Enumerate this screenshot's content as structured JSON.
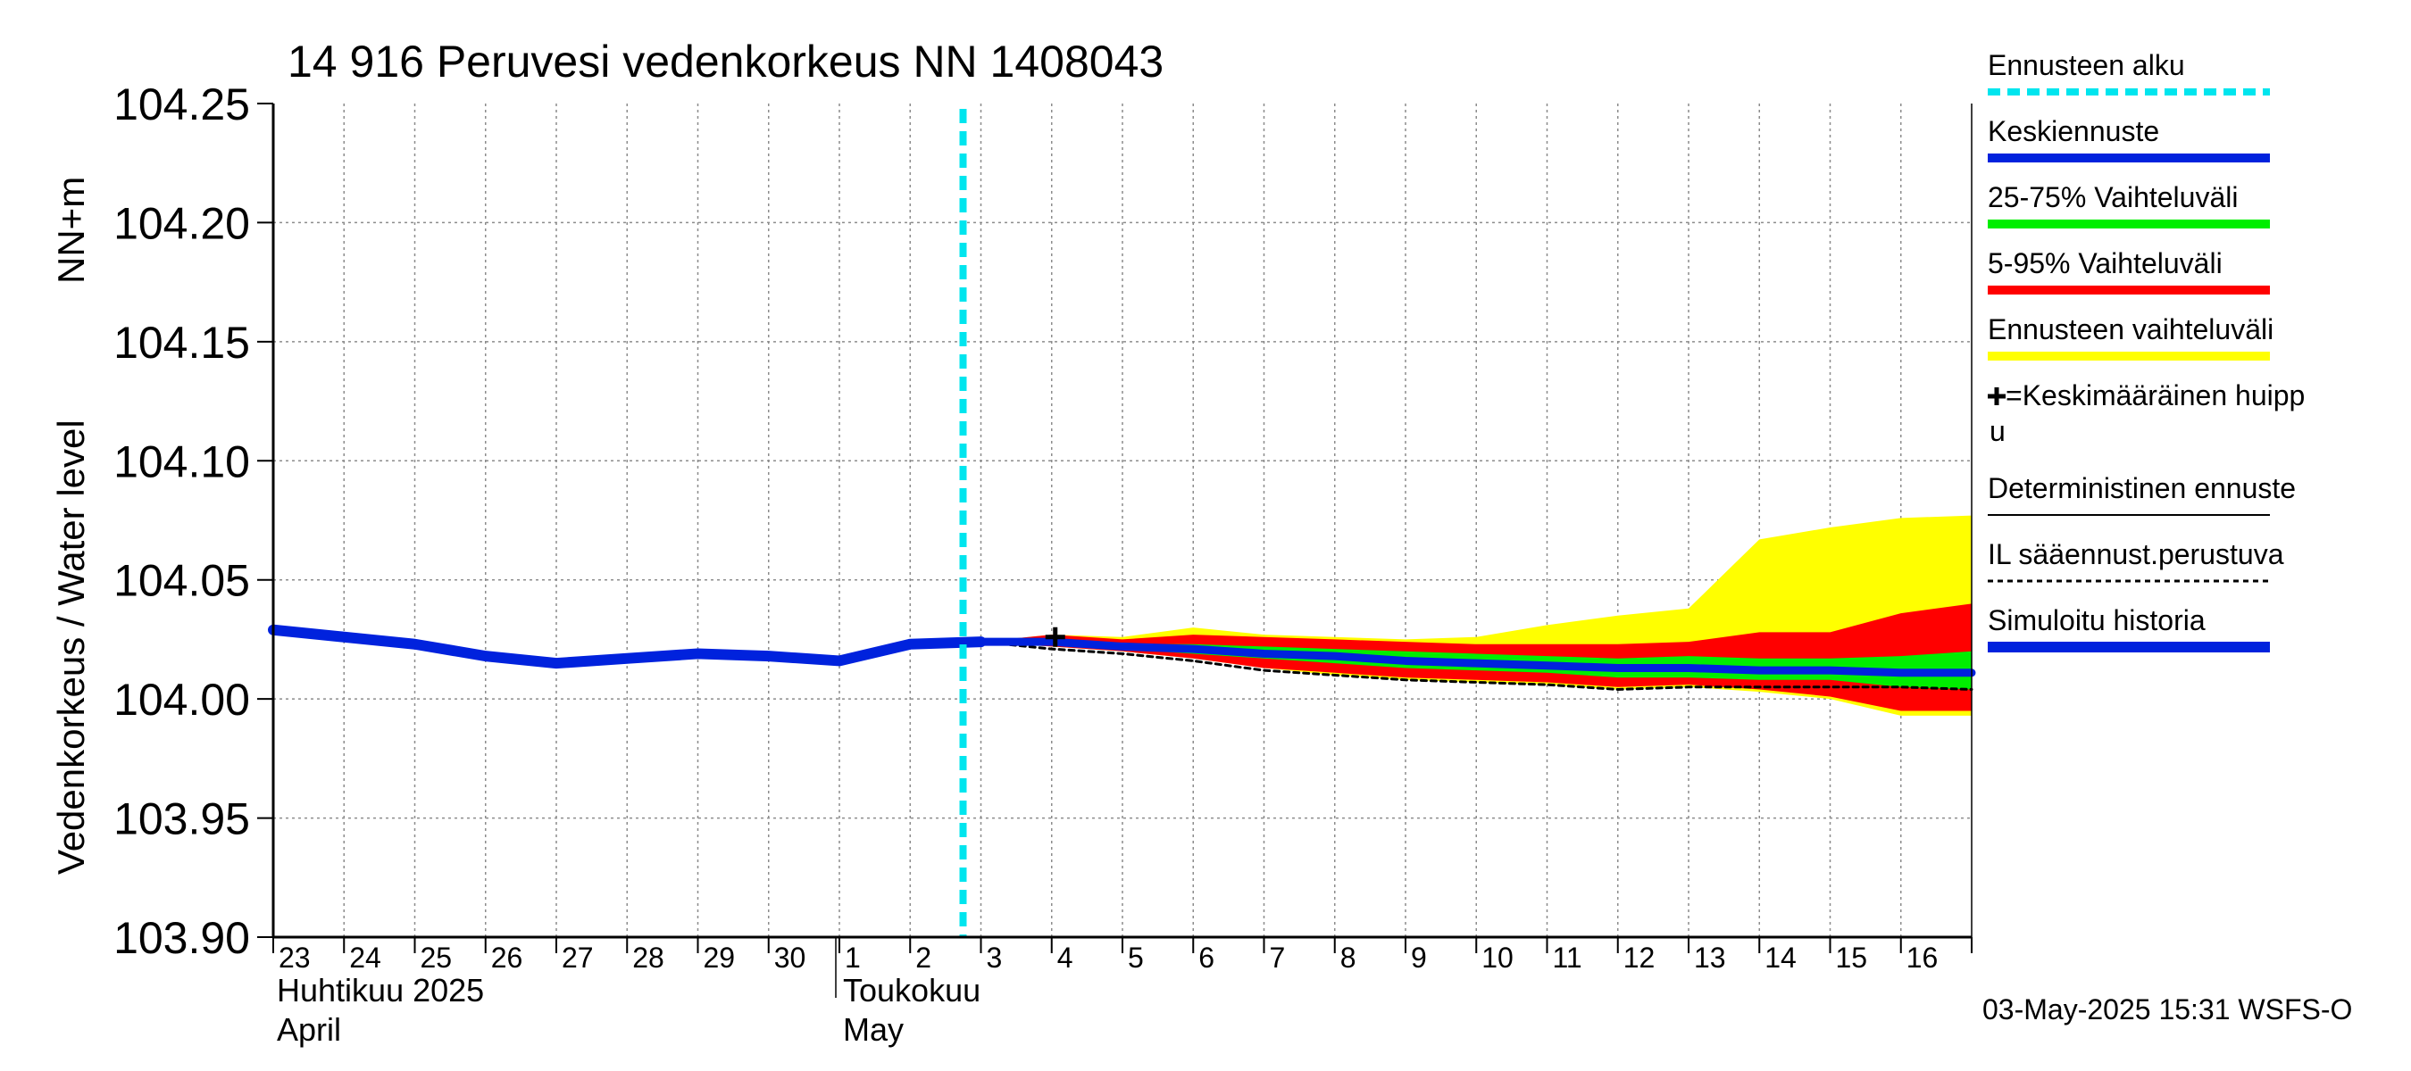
{
  "chart_data": {
    "type": "area",
    "title": "14 916 Peruvesi vedenkorkeus NN 1408043",
    "ylabel_left": "Vedenkorkeus / Water level",
    "ylabel_right": "NN+m",
    "ylim": [
      103.9,
      104.25
    ],
    "yticks": [
      "104.25",
      "104.20",
      "104.15",
      "104.10",
      "104.05",
      "104.00",
      "103.95",
      "103.90"
    ],
    "ytick_values": [
      104.25,
      104.2,
      104.15,
      104.1,
      104.05,
      104.0,
      103.95,
      103.9
    ],
    "x_start": "2025-04-23",
    "x_end": "2025-05-17",
    "x_tick_labels": [
      "23",
      "24",
      "25",
      "26",
      "27",
      "28",
      "29",
      "30",
      "1",
      "2",
      "3",
      "4",
      "5",
      "6",
      "7",
      "8",
      "9",
      "10",
      "11",
      "12",
      "13",
      "14",
      "15",
      "16"
    ],
    "month_labels": [
      {
        "fi": "Huhtikuu  2025",
        "en": "April",
        "date": "2025-04-23"
      },
      {
        "fi": "Toukokuu",
        "en": "May",
        "date": "2025-05-01"
      }
    ],
    "forecast_start": "2025-05-03",
    "timestamp": "03-May-2025 15:31 WSFS-O",
    "grid": true,
    "legend_position": "right",
    "legend": [
      {
        "label": "Ennusteen alku",
        "color": "#00e5ee",
        "style": "dashed"
      },
      {
        "label": "Keskiennuste",
        "color": "#0022dd",
        "style": "solid"
      },
      {
        "label": "25-75% Vaihteluväli",
        "color": "#00ee00",
        "style": "solid"
      },
      {
        "label": "5-95% Vaihteluväli",
        "color": "#ff0000",
        "style": "solid"
      },
      {
        "label": "Ennusteen vaihteluväli",
        "color": "#ffff00",
        "style": "solid"
      },
      {
        "label": "✚=Keskimääräinen huippu",
        "color": "#000000",
        "style": "marker"
      },
      {
        "label": "Deterministinen ennuste",
        "color": "#000000",
        "style": "thin"
      },
      {
        "label": "IL sääennust.perustuva",
        "color": "#000000",
        "style": "dotted"
      },
      {
        "label": "Simuloitu historia",
        "color": "#0022dd",
        "style": "thick"
      }
    ],
    "series": [
      {
        "name": "Simuloitu historia",
        "x": [
          "2025-04-23",
          "2025-04-24",
          "2025-04-25",
          "2025-04-26",
          "2025-04-27",
          "2025-04-28",
          "2025-04-29",
          "2025-04-30",
          "2025-05-01",
          "2025-05-02",
          "2025-05-03"
        ],
        "values": [
          104.029,
          104.026,
          104.023,
          104.018,
          104.015,
          104.017,
          104.019,
          104.018,
          104.016,
          104.023,
          104.024
        ]
      },
      {
        "name": "Keskiennuste",
        "x": [
          "2025-05-03",
          "2025-05-04",
          "2025-05-05",
          "2025-05-06",
          "2025-05-07",
          "2025-05-08",
          "2025-05-09",
          "2025-05-10",
          "2025-05-11",
          "2025-05-12",
          "2025-05-13",
          "2025-05-14",
          "2025-05-15",
          "2025-05-16",
          "2025-05-17"
        ],
        "values": [
          104.024,
          104.024,
          104.022,
          104.021,
          104.019,
          104.018,
          104.016,
          104.015,
          104.014,
          104.013,
          104.013,
          104.012,
          104.012,
          104.011,
          104.011
        ]
      },
      {
        "name": "Ennusteen vaihteluväli",
        "x": [
          "2025-05-03",
          "2025-05-04",
          "2025-05-05",
          "2025-05-06",
          "2025-05-07",
          "2025-05-08",
          "2025-05-09",
          "2025-05-10",
          "2025-05-11",
          "2025-05-12",
          "2025-05-13",
          "2025-05-14",
          "2025-05-15",
          "2025-05-16",
          "2025-05-17"
        ],
        "upper": [
          104.024,
          104.027,
          104.026,
          104.03,
          104.027,
          104.026,
          104.025,
          104.026,
          104.031,
          104.035,
          104.038,
          104.067,
          104.072,
          104.076,
          104.077
        ],
        "lower": [
          104.024,
          104.022,
          104.02,
          104.017,
          104.013,
          104.01,
          104.008,
          104.007,
          104.006,
          104.004,
          104.005,
          104.003,
          104.0,
          103.993,
          103.993
        ]
      },
      {
        "name": "5-95% Vaihteluväli",
        "x": [
          "2025-05-03",
          "2025-05-04",
          "2025-05-05",
          "2025-05-06",
          "2025-05-07",
          "2025-05-08",
          "2025-05-09",
          "2025-05-10",
          "2025-05-11",
          "2025-05-12",
          "2025-05-13",
          "2025-05-14",
          "2025-05-15",
          "2025-05-16",
          "2025-05-17"
        ],
        "upper": [
          104.024,
          104.027,
          104.025,
          104.027,
          104.026,
          104.025,
          104.024,
          104.023,
          104.023,
          104.023,
          104.024,
          104.028,
          104.028,
          104.036,
          104.04
        ],
        "lower": [
          104.024,
          104.022,
          104.02,
          104.017,
          104.013,
          104.011,
          104.009,
          104.008,
          104.007,
          104.005,
          104.006,
          104.004,
          104.001,
          103.995,
          103.995
        ]
      },
      {
        "name": "25-75% Vaihteluväli",
        "x": [
          "2025-05-03",
          "2025-05-04",
          "2025-05-05",
          "2025-05-06",
          "2025-05-07",
          "2025-05-08",
          "2025-05-09",
          "2025-05-10",
          "2025-05-11",
          "2025-05-12",
          "2025-05-13",
          "2025-05-14",
          "2025-05-15",
          "2025-05-16",
          "2025-05-17"
        ],
        "upper": [
          104.024,
          104.025,
          104.023,
          104.023,
          104.022,
          104.021,
          104.02,
          104.019,
          104.018,
          104.017,
          104.018,
          104.017,
          104.017,
          104.018,
          104.02
        ],
        "lower": [
          104.024,
          104.023,
          104.021,
          104.019,
          104.017,
          104.015,
          104.013,
          104.012,
          104.011,
          104.009,
          104.009,
          104.008,
          104.008,
          104.005,
          104.004
        ]
      },
      {
        "name": "IL sääennust.perustuva",
        "x": [
          "2025-05-03",
          "2025-05-04",
          "2025-05-05",
          "2025-05-06",
          "2025-05-07",
          "2025-05-08",
          "2025-05-09",
          "2025-05-10",
          "2025-05-11",
          "2025-05-12",
          "2025-05-13",
          "2025-05-14",
          "2025-05-15",
          "2025-05-16",
          "2025-05-17"
        ],
        "values": [
          104.024,
          104.021,
          104.019,
          104.016,
          104.012,
          104.01,
          104.008,
          104.007,
          104.006,
          104.004,
          104.005,
          104.005,
          104.005,
          104.005,
          104.004
        ]
      }
    ],
    "mean_peak": {
      "x": "2025-05-04",
      "y": 104.026
    }
  }
}
